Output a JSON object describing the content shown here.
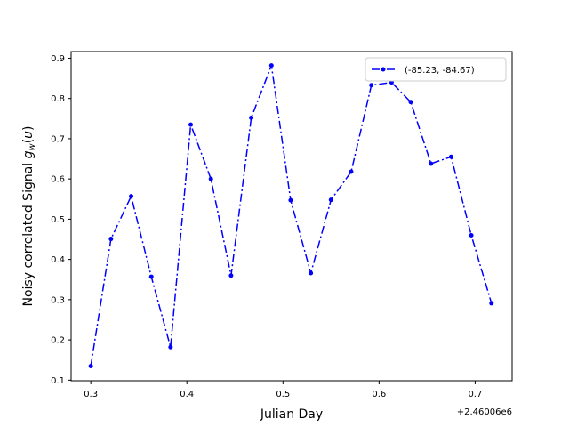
{
  "chart_data": {
    "type": "line",
    "title": "",
    "xlabel": "Julian Day",
    "ylabel": "Noisy correlated Signal g_w(u)",
    "x_offset_label": "+2.46006e6",
    "xlim": [
      0.2795,
      0.7385
    ],
    "ylim": [
      0.0985,
      0.9165
    ],
    "x_ticks": [
      0.3,
      0.4,
      0.5,
      0.6,
      0.7
    ],
    "x_tick_labels": [
      "0.3",
      "0.4",
      "0.5",
      "0.6",
      "0.7"
    ],
    "y_ticks": [
      0.1,
      0.2,
      0.3,
      0.4,
      0.5,
      0.6,
      0.7,
      0.8,
      0.9
    ],
    "y_tick_labels": [
      "0.1",
      "0.2",
      "0.3",
      "0.4",
      "0.5",
      "0.6",
      "0.7",
      "0.8",
      "0.9"
    ],
    "grid": false,
    "legend_position": "top-right",
    "series": [
      {
        "name": "(-85.23, -84.67)",
        "color": "#0000ff",
        "line_style": "dash-dot",
        "marker": "circle",
        "x": [
          0.3,
          0.321,
          0.342,
          0.363,
          0.383,
          0.404,
          0.425,
          0.446,
          0.467,
          0.488,
          0.508,
          0.529,
          0.55,
          0.571,
          0.592,
          0.613,
          0.633,
          0.654,
          0.675,
          0.696,
          0.717
        ],
        "y": [
          0.135,
          0.451,
          0.557,
          0.357,
          0.182,
          0.735,
          0.6,
          0.36,
          0.752,
          0.882,
          0.547,
          0.366,
          0.548,
          0.618,
          0.833,
          0.84,
          0.791,
          0.638,
          0.655,
          0.46,
          0.291
        ]
      }
    ]
  }
}
